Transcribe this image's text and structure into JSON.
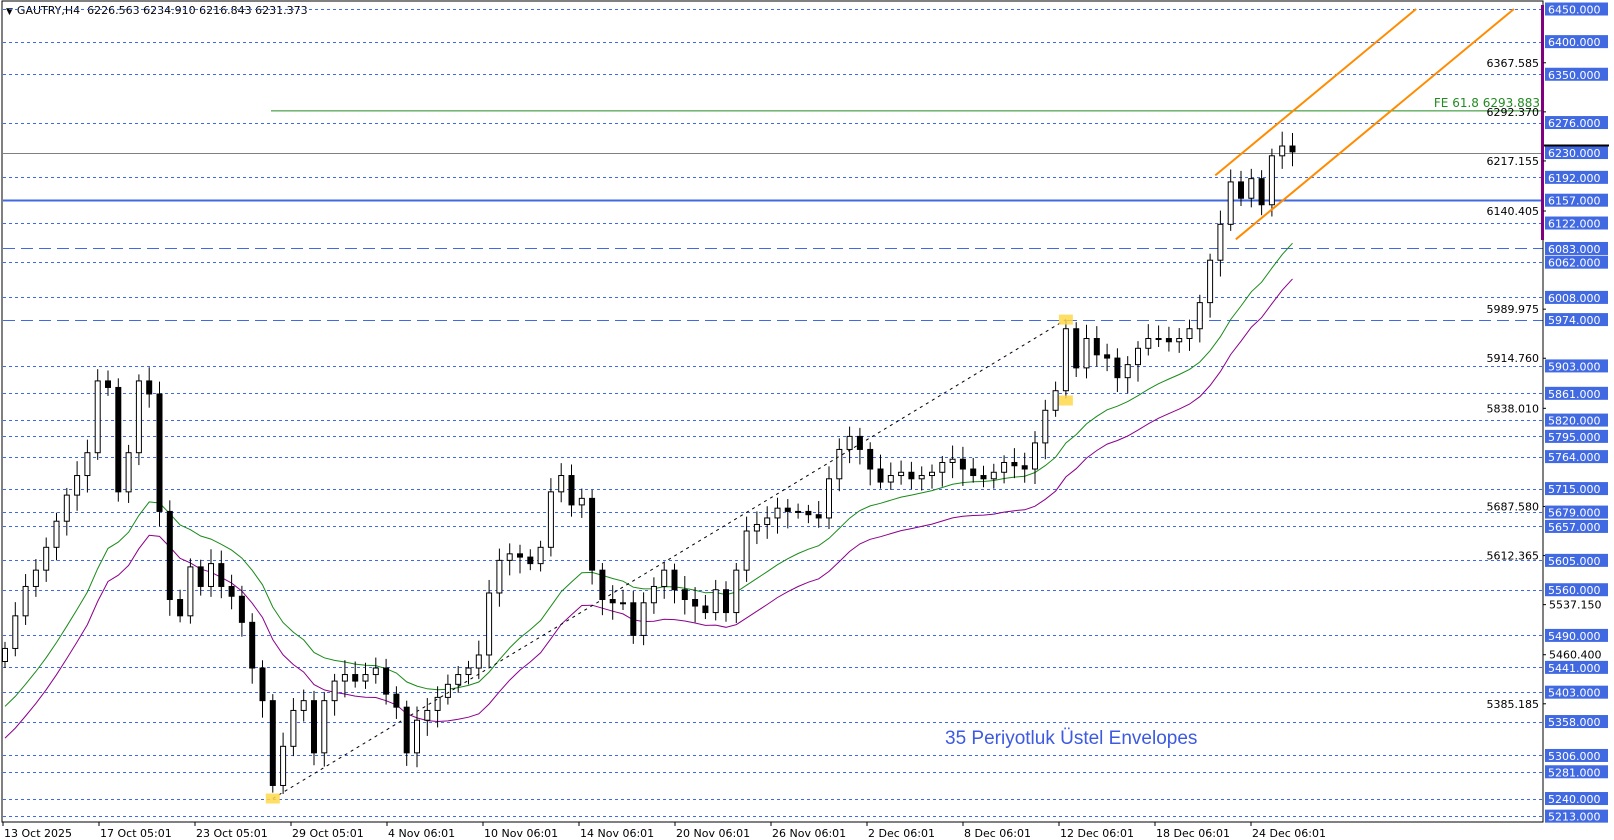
{
  "header": {
    "symbol_label": "GAUTRY,H4",
    "ohlc": "6226.563 6234.910 6216.843 6231.373",
    "collapse_icon": "triangle-down-icon"
  },
  "legend_text": "35 Periyotluk Üstel Envelopes",
  "colors": {
    "level_line": "#4169e1",
    "label_bg": "#4169e1",
    "envelope_upper": "#1a8a1a",
    "envelope_lower": "#8b008b",
    "channel": "#ff8c00",
    "fibo": "#228b22",
    "marker": "#ffd84a",
    "current_price_line": "#808080",
    "axis_marker": "#800080"
  },
  "chart_data": {
    "type": "candlestick",
    "title": "GAUTRY,H4",
    "ylim": [
      5213,
      6450
    ],
    "grid": false,
    "x_ticks": [
      "13 Oct 2025",
      "17 Oct 05:01",
      "23 Oct 05:01",
      "29 Oct 05:01",
      "4 Nov 06:01",
      "10 Nov 06:01",
      "14 Nov 06:01",
      "20 Nov 06:01",
      "26 Nov 06:01",
      "2 Dec 06:01",
      "8 Dec 06:01",
      "12 Dec 06:01",
      "18 Dec 06:01",
      "24 Dec 06:01"
    ],
    "closes": [
      5470,
      5520,
      5565,
      5590,
      5625,
      5665,
      5705,
      5735,
      5770,
      5880,
      5870,
      5710,
      5770,
      5880,
      5860,
      5680,
      5545,
      5520,
      5595,
      5565,
      5600,
      5565,
      5550,
      5510,
      5440,
      5390,
      5260,
      5320,
      5375,
      5390,
      5310,
      5390,
      5420,
      5430,
      5420,
      5430,
      5440,
      5400,
      5380,
      5310,
      5360,
      5375,
      5395,
      5415,
      5430,
      5440,
      5460,
      5555,
      5605,
      5615,
      5610,
      5600,
      5625,
      5710,
      5735,
      5690,
      5700,
      5590,
      5545,
      5540,
      5540,
      5490,
      5540,
      5565,
      5590,
      5560,
      5545,
      5535,
      5525,
      5560,
      5525,
      5590,
      5650,
      5660,
      5670,
      5685,
      5680,
      5680,
      5675,
      5670,
      5730,
      5775,
      5795,
      5775,
      5745,
      5725,
      5735,
      5740,
      5730,
      5735,
      5740,
      5755,
      5760,
      5745,
      5735,
      5730,
      5740,
      5755,
      5750,
      5745,
      5785,
      5835,
      5865,
      5960,
      5900,
      5945,
      5920,
      5915,
      5885,
      5905,
      5930,
      5945,
      5945,
      5940,
      5945,
      5960,
      6000,
      6065,
      6120,
      6185,
      6160,
      6190,
      6150,
      6225,
      6240,
      6231
    ],
    "envelope": {
      "period": 35,
      "type": "exponential"
    },
    "levels": [
      {
        "price": 6450,
        "label": "6450.000",
        "style": "dotted"
      },
      {
        "price": 6400,
        "label": "6400.000",
        "style": "dotted"
      },
      {
        "price": 6350,
        "label": "6350.000",
        "style": "dotted"
      },
      {
        "price": 6276,
        "label": "6276.000",
        "style": "dotted"
      },
      {
        "price": 6230,
        "label": "6230.000",
        "style": "current"
      },
      {
        "price": 6192,
        "label": "6192.000",
        "style": "dotted"
      },
      {
        "price": 6157,
        "label": "6157.000",
        "style": "solid"
      },
      {
        "price": 6122,
        "label": "6122.000",
        "style": "dotted"
      },
      {
        "price": 6083,
        "label": "6083.000",
        "style": "dashed"
      },
      {
        "price": 6062,
        "label": "6062.000",
        "style": "dotted"
      },
      {
        "price": 6008,
        "label": "6008.000",
        "style": "dotted"
      },
      {
        "price": 5974,
        "label": "5974.000",
        "style": "dashed"
      },
      {
        "price": 5903,
        "label": "5903.000",
        "style": "dotted"
      },
      {
        "price": 5861,
        "label": "5861.000",
        "style": "dotted"
      },
      {
        "price": 5820,
        "label": "5820.000",
        "style": "dotted"
      },
      {
        "price": 5795,
        "label": "5795.000",
        "style": "dotted"
      },
      {
        "price": 5764,
        "label": "5764.000",
        "style": "dotted"
      },
      {
        "price": 5715,
        "label": "5715.000",
        "style": "dotted"
      },
      {
        "price": 5679,
        "label": "5679.000",
        "style": "dotted"
      },
      {
        "price": 5657,
        "label": "5657.000",
        "style": "dotted"
      },
      {
        "price": 5605,
        "label": "5605.000",
        "style": "dotted"
      },
      {
        "price": 5560,
        "label": "5560.000",
        "style": "dotted"
      },
      {
        "price": 5490,
        "label": "5490.000",
        "style": "dotted"
      },
      {
        "price": 5441,
        "label": "5441.000",
        "style": "dotted"
      },
      {
        "price": 5403,
        "label": "5403.000",
        "style": "dotted"
      },
      {
        "price": 5358,
        "label": "5358.000",
        "style": "dotted"
      },
      {
        "price": 5306,
        "label": "5306.000",
        "style": "dotted"
      },
      {
        "price": 5281,
        "label": "5281.000",
        "style": "dotted"
      },
      {
        "price": 5240,
        "label": "5240.000",
        "style": "dotted"
      },
      {
        "price": 5213,
        "label": "5213.000",
        "style": "dotted"
      }
    ],
    "price_ticks": [
      "6367.585",
      "6292.370",
      "6217.155",
      "6140.405",
      "5989.975",
      "5914.760",
      "5838.010",
      "5687.580",
      "5612.365",
      "5537.150",
      "5460.400",
      "5385.185"
    ],
    "fibo": {
      "label": "FE 61.8 6293.883",
      "price": 6293.883
    },
    "trendline_points": [
      {
        "bar": 26,
        "price": 5240
      },
      {
        "bar": 103,
        "price": 5974
      }
    ],
    "markers": [
      {
        "bar": 26,
        "price": 5240
      },
      {
        "bar": 103,
        "price": 5974
      },
      {
        "bar": 103,
        "price": 5850
      }
    ],
    "channel": {
      "upper": [
        {
          "bar": 117.5,
          "price": 6195
        },
        {
          "bar": 137,
          "price": 6450
        }
      ],
      "lower": [
        {
          "bar": 119.5,
          "price": 6097
        },
        {
          "bar": 146.5,
          "price": 6450
        }
      ]
    }
  }
}
